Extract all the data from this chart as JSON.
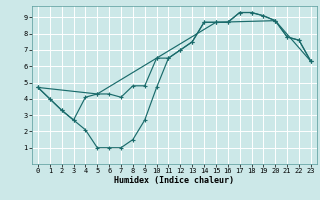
{
  "title": "",
  "xlabel": "Humidex (Indice chaleur)",
  "ylabel": "",
  "bg_color": "#cce8e8",
  "grid_color": "#ffffff",
  "line_color": "#1a6b6b",
  "xlim": [
    -0.5,
    23.5
  ],
  "ylim": [
    0,
    9.7
  ],
  "xticks": [
    0,
    1,
    2,
    3,
    4,
    5,
    6,
    7,
    8,
    9,
    10,
    11,
    12,
    13,
    14,
    15,
    16,
    17,
    18,
    19,
    20,
    21,
    22,
    23
  ],
  "yticks": [
    1,
    2,
    3,
    4,
    5,
    6,
    7,
    8,
    9
  ],
  "line1_x": [
    0,
    1,
    2,
    3,
    4,
    5,
    6,
    7,
    8,
    9,
    10,
    11,
    12,
    13,
    14,
    15,
    16,
    17,
    18,
    19,
    20,
    21,
    22,
    23
  ],
  "line1_y": [
    4.7,
    4.0,
    3.3,
    2.7,
    2.1,
    1.0,
    1.0,
    1.0,
    1.5,
    2.7,
    4.7,
    6.5,
    7.0,
    7.5,
    8.7,
    8.7,
    8.7,
    9.3,
    9.3,
    9.1,
    8.8,
    7.8,
    7.6,
    6.3
  ],
  "line2_x": [
    0,
    1,
    2,
    3,
    4,
    5,
    6,
    7,
    8,
    9,
    10,
    11,
    12,
    13,
    14,
    15,
    16,
    17,
    18,
    19,
    20,
    21,
    22,
    23
  ],
  "line2_y": [
    4.7,
    4.0,
    3.3,
    2.7,
    4.1,
    4.3,
    4.3,
    4.1,
    4.8,
    4.8,
    6.5,
    6.5,
    7.0,
    7.5,
    8.7,
    8.7,
    8.7,
    9.3,
    9.3,
    9.1,
    8.8,
    7.8,
    7.6,
    6.3
  ],
  "line3_x": [
    0,
    5,
    10,
    15,
    20,
    23
  ],
  "line3_y": [
    4.7,
    4.3,
    6.5,
    8.7,
    8.8,
    6.3
  ],
  "marker": "+",
  "xlabel_fontsize": 6.0,
  "tick_fontsize": 5.0
}
